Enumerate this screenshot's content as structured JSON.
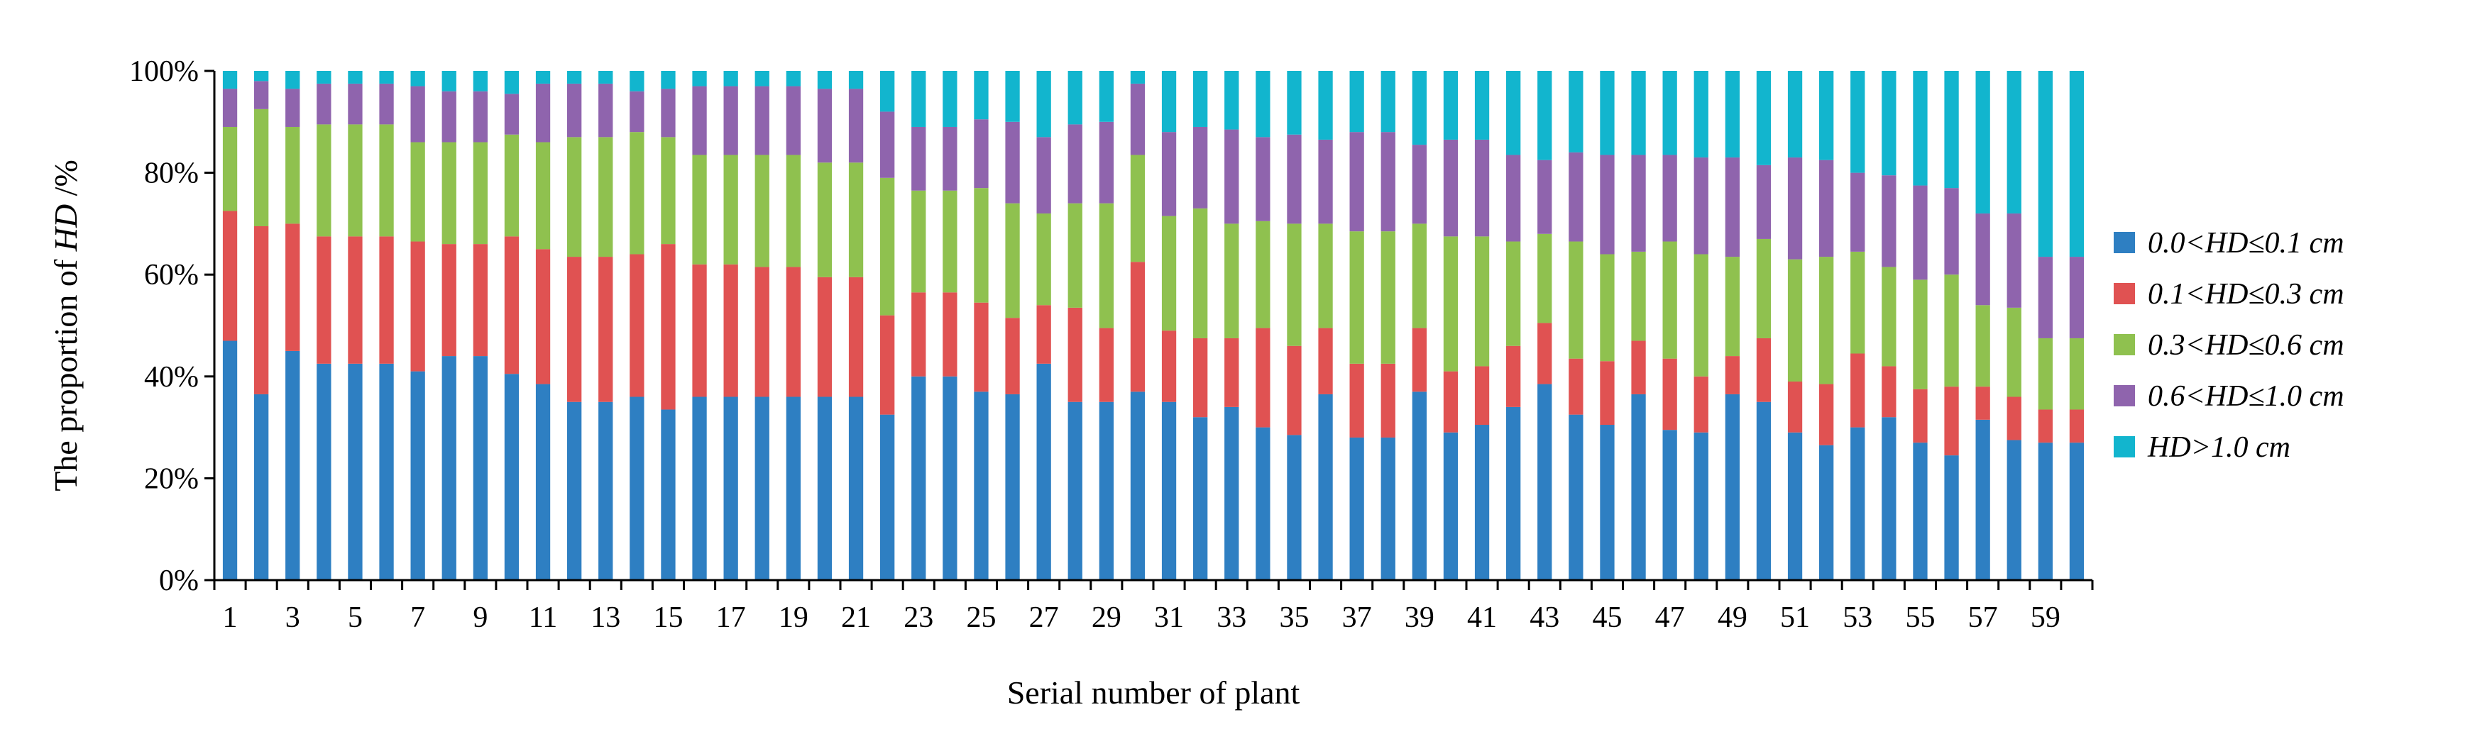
{
  "chart_data": {
    "type": "bar",
    "stacked": true,
    "normalized": true,
    "title": "",
    "xlabel": "Serial number of plant",
    "ylabel": "The proportion of HD /%",
    "ylabel_parts": {
      "prefix": "The proportion of ",
      "italic": "HD",
      "suffix": " /%"
    },
    "ylim": [
      0,
      100
    ],
    "yticks": [
      "0%",
      "20%",
      "40%",
      "60%",
      "80%",
      "100%"
    ],
    "xtick_labels": [
      "1",
      "3",
      "5",
      "7",
      "9",
      "11",
      "13",
      "15",
      "17",
      "19",
      "21",
      "23",
      "25",
      "27",
      "29",
      "31",
      "33",
      "35",
      "37",
      "39",
      "41",
      "43",
      "45",
      "47",
      "49",
      "51",
      "53",
      "55",
      "57",
      "59"
    ],
    "legend_position": "right",
    "categories": [
      "1",
      "2",
      "3",
      "4",
      "5",
      "6",
      "7",
      "8",
      "9",
      "10",
      "11",
      "12",
      "13",
      "14",
      "15",
      "16",
      "17",
      "18",
      "19",
      "20",
      "21",
      "22",
      "23",
      "24",
      "25",
      "26",
      "27",
      "28",
      "29",
      "30",
      "31",
      "32",
      "33",
      "34",
      "35",
      "36",
      "37",
      "38",
      "39",
      "40",
      "41",
      "42",
      "43",
      "44",
      "45",
      "46",
      "47",
      "48",
      "49",
      "50",
      "51",
      "52",
      "53",
      "54",
      "55",
      "56",
      "57",
      "58",
      "59",
      "60"
    ],
    "series": [
      {
        "name": "0.0<HD≤0.1 cm",
        "color": "#2e7fc2",
        "values": [
          47,
          36.5,
          45,
          42.5,
          42.5,
          42.5,
          41,
          44,
          44,
          40.5,
          38.5,
          35,
          35,
          36,
          33.5,
          36,
          36,
          36,
          36,
          36,
          36,
          32.5,
          40,
          40,
          37,
          36.5,
          42.5,
          35,
          35,
          37,
          35,
          32,
          34,
          30,
          28.5,
          36.5,
          28,
          28,
          37,
          29,
          30.5,
          34,
          38.5,
          32.5,
          30.5,
          36.5,
          29.5,
          29,
          36.5,
          35,
          29,
          26.5,
          30,
          32,
          27,
          24.5,
          31.5,
          27.5,
          27,
          27
        ]
      },
      {
        "name": "0.1<HD≤0.3 cm",
        "color": "#e05252",
        "values": [
          25.5,
          33,
          25,
          25,
          25,
          25,
          25.5,
          22,
          22,
          27,
          26.5,
          28.5,
          28.5,
          28,
          32.5,
          26,
          26,
          25.5,
          25.5,
          23.5,
          23.5,
          19.5,
          16.5,
          16.5,
          17.5,
          15,
          11.5,
          18.5,
          14.5,
          25.5,
          14,
          15.5,
          13.5,
          19.5,
          17.5,
          13,
          14.5,
          14.5,
          12.5,
          12,
          11.5,
          12,
          12,
          11,
          12.5,
          10.5,
          14,
          11,
          7.5,
          12.5,
          10,
          12,
          14.5,
          10,
          10.5,
          13.5,
          6.5,
          8.5,
          6.5,
          6.5
        ]
      },
      {
        "name": "0.3<HD≤0.6 cm",
        "color": "#8fc14f",
        "values": [
          16.5,
          23,
          19,
          22,
          22,
          22,
          19.5,
          20,
          20,
          20,
          21,
          23.5,
          23.5,
          24,
          21,
          21.5,
          21.5,
          22,
          22,
          22.5,
          22.5,
          27,
          20,
          20,
          22.5,
          22.5,
          18,
          20.5,
          24.5,
          21,
          22.5,
          25.5,
          22.5,
          21,
          24,
          20.5,
          26,
          26,
          20.5,
          26.5,
          25.5,
          20.5,
          17.5,
          23,
          21,
          17.5,
          23,
          24,
          19.5,
          19.5,
          24,
          25,
          20,
          19.5,
          21.5,
          22,
          16,
          17.5,
          14,
          14
        ]
      },
      {
        "name": "0.6<HD≤1.0 cm",
        "color": "#8f64ad",
        "values": [
          7.5,
          5.5,
          7.5,
          8,
          8,
          8,
          11,
          10,
          10,
          8,
          11.5,
          10.5,
          10.5,
          8,
          9.5,
          13.5,
          13.5,
          13.5,
          13.5,
          14.5,
          14.5,
          13,
          12.5,
          12.5,
          13.5,
          16,
          15,
          15.5,
          16,
          14,
          16.5,
          16,
          18.5,
          16.5,
          17.5,
          16.5,
          19.5,
          19.5,
          15.5,
          19,
          19,
          17,
          14.5,
          17.5,
          19.5,
          19,
          17,
          19,
          19.5,
          14.5,
          20,
          19,
          15.5,
          18,
          18.5,
          17,
          18,
          18.5,
          16,
          16
        ]
      },
      {
        "name": "HD>1.0 cm",
        "color": "#12b5ce",
        "values": [
          3.5,
          2,
          3.5,
          2.5,
          2.5,
          2.5,
          3,
          4,
          4,
          4.5,
          2.5,
          2.5,
          2.5,
          4,
          3.5,
          3,
          3,
          3,
          3,
          3.5,
          3.5,
          8,
          11,
          11,
          9.5,
          10,
          13,
          10.5,
          10,
          2.5,
          12,
          11,
          11.5,
          13,
          12.5,
          13.5,
          12,
          12,
          14.5,
          13.5,
          13.5,
          16.5,
          17.5,
          16,
          16.5,
          16.5,
          16.5,
          17,
          17,
          18.5,
          17,
          17.5,
          20,
          20.5,
          22.5,
          23,
          28,
          28,
          36.5,
          36.5
        ]
      }
    ]
  }
}
